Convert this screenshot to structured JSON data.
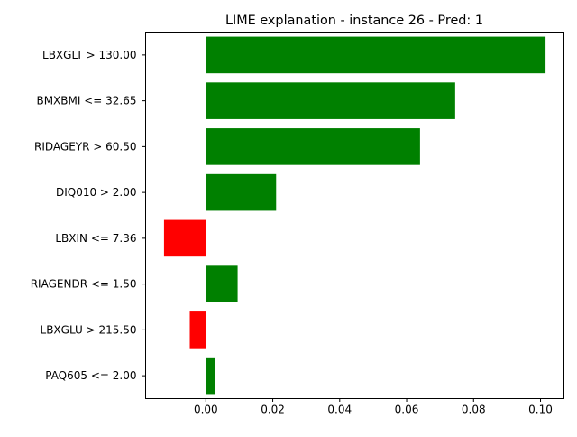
{
  "chart_data": {
    "type": "bar",
    "orientation": "horizontal",
    "title": "LIME explanation - instance 26 - Pred: 1",
    "xlabel": "",
    "ylabel": "",
    "categories": [
      "LBXGLT > 130.00",
      "BMXBMI <= 32.65",
      "RIDAGEYR > 60.50",
      "DIQ010 > 2.00",
      "LBXIN <= 7.36",
      "RIAGENDR <= 1.50",
      "LBXGLU > 215.50",
      "PAQ605 <= 2.00"
    ],
    "values": [
      0.1015,
      0.0745,
      0.064,
      0.021,
      -0.0125,
      0.0095,
      -0.0048,
      0.0028
    ],
    "xlim": [
      -0.018,
      0.107
    ],
    "xticks": [
      "0.00",
      "0.02",
      "0.04",
      "0.06",
      "0.08",
      "0.10"
    ],
    "grid": false,
    "colors": {
      "positive": "#008000",
      "negative": "#ff0000"
    }
  }
}
